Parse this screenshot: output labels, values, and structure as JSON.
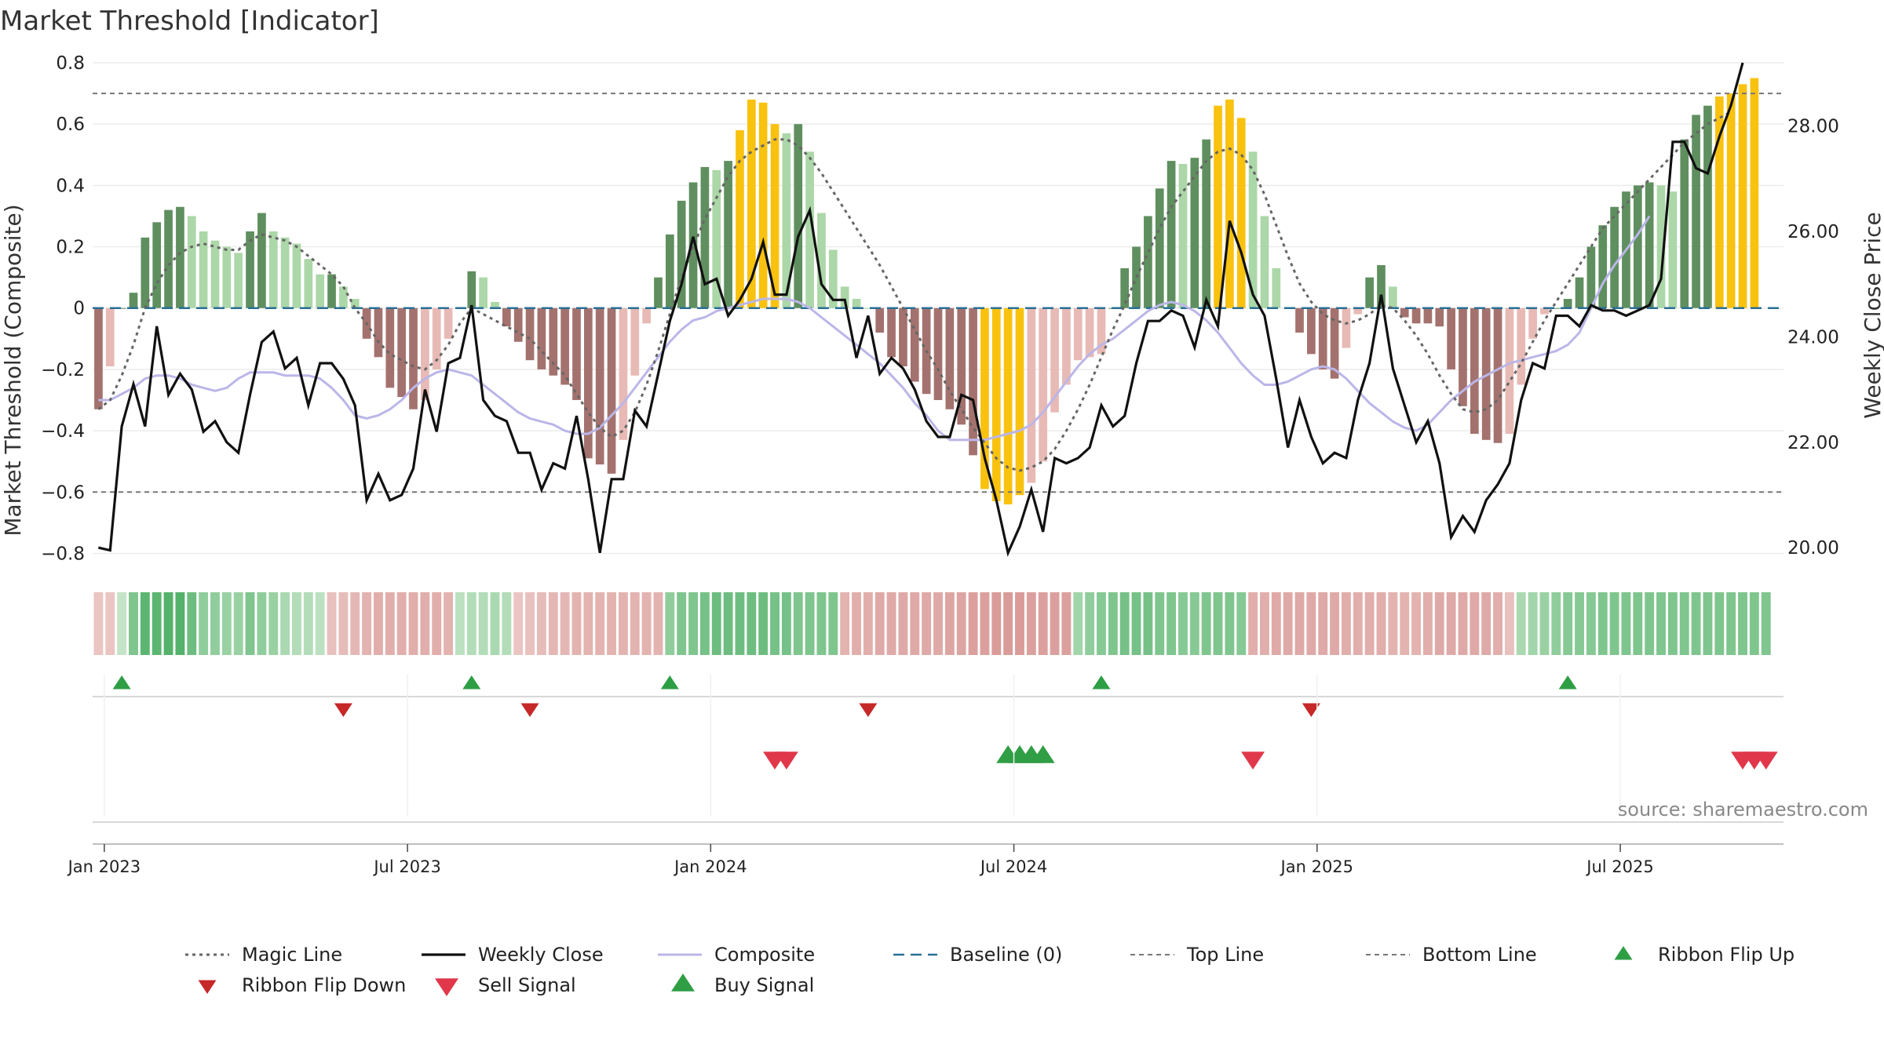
{
  "chart_data": {
    "type": "bar",
    "title": "Market Threshold [Indicator]",
    "ylabel": "Market Threshold (Composite)",
    "y2label": "Weekly Close Price",
    "ylim": [
      -0.85,
      0.8
    ],
    "y2lim": [
      19.6,
      29.2
    ],
    "yticks": [
      {
        "v": 0.8,
        "t": "0.8"
      },
      {
        "v": 0.6,
        "t": "0.6"
      },
      {
        "v": 0.4,
        "t": "0.4"
      },
      {
        "v": 0.2,
        "t": "0.2"
      },
      {
        "v": 0,
        "t": "0"
      },
      {
        "v": -0.2,
        "t": "−0.2"
      },
      {
        "v": -0.4,
        "t": "−0.4"
      },
      {
        "v": -0.6,
        "t": "−0.6"
      },
      {
        "v": -0.8,
        "t": "−0.8"
      }
    ],
    "y2ticks": [
      {
        "v": 28,
        "t": "28.00"
      },
      {
        "v": 26,
        "t": "26.00"
      },
      {
        "v": 24,
        "t": "24.00"
      },
      {
        "v": 22,
        "t": "22.00"
      },
      {
        "v": 20,
        "t": "20.00"
      }
    ],
    "xticks": [
      {
        "w": 1,
        "t": "Jan 2023"
      },
      {
        "w": 27,
        "t": "Jul 2023"
      },
      {
        "w": 53,
        "t": "Jan 2024"
      },
      {
        "w": 79,
        "t": "Jul 2024"
      },
      {
        "w": 105,
        "t": "Jan 2025"
      },
      {
        "w": 131,
        "t": "Jul 2025"
      }
    ],
    "weeks": 145,
    "composite_bars": [
      -0.33,
      -0.19,
      0.0,
      0.05,
      0.23,
      0.28,
      0.32,
      0.33,
      0.3,
      0.25,
      0.22,
      0.2,
      0.18,
      0.25,
      0.31,
      0.25,
      0.23,
      0.21,
      0.16,
      0.11,
      0.11,
      0.07,
      0.03,
      -0.1,
      -0.16,
      -0.26,
      -0.29,
      -0.33,
      -0.3,
      -0.2,
      -0.1,
      0.0,
      0.12,
      0.1,
      0.02,
      -0.06,
      -0.11,
      -0.17,
      -0.2,
      -0.22,
      -0.25,
      -0.3,
      -0.49,
      -0.51,
      -0.54,
      -0.43,
      -0.22,
      -0.05,
      0.1,
      0.24,
      0.35,
      0.41,
      0.46,
      0.45,
      0.48,
      0.58,
      0.68,
      0.67,
      0.6,
      0.57,
      0.6,
      0.51,
      0.31,
      0.19,
      0.07,
      0.03,
      0.0,
      -0.08,
      -0.16,
      -0.19,
      -0.24,
      -0.28,
      -0.3,
      -0.33,
      -0.38,
      -0.48,
      -0.59,
      -0.63,
      -0.64,
      -0.61,
      -0.57,
      -0.5,
      -0.34,
      -0.25,
      -0.17,
      -0.16,
      -0.15,
      0.0,
      0.13,
      0.2,
      0.3,
      0.39,
      0.48,
      0.47,
      0.49,
      0.55,
      0.66,
      0.68,
      0.62,
      0.51,
      0.3,
      0.13,
      0.0,
      -0.08,
      -0.15,
      -0.2,
      -0.23,
      -0.13,
      -0.02,
      0.1,
      0.14,
      0.07,
      -0.03,
      -0.05,
      -0.05,
      -0.06,
      -0.2,
      -0.32,
      -0.41,
      -0.43,
      -0.44,
      -0.41,
      -0.25,
      -0.1,
      -0.02,
      0.0,
      0.03,
      0.1,
      0.2,
      0.27,
      0.33,
      0.38,
      0.4,
      0.41,
      0.4,
      0.38,
      0.55,
      0.63,
      0.66,
      0.69,
      0.7,
      0.73,
      0.75
    ],
    "bar_colors": {
      "strong_up": "#5f8f5f",
      "light_up": "#acd7a8",
      "strong_down": "#a4726e",
      "light_down": "#e8bab5",
      "extreme": "#f9c20f"
    },
    "weekly_close": [
      20.0,
      19.95,
      22.3,
      23.1,
      22.3,
      24.2,
      22.9,
      23.3,
      23.0,
      22.2,
      22.4,
      22.0,
      21.8,
      22.9,
      23.9,
      24.1,
      23.4,
      23.6,
      22.7,
      23.5,
      23.5,
      23.2,
      22.7,
      20.9,
      21.4,
      20.9,
      21.0,
      21.5,
      23.0,
      22.2,
      23.5,
      23.6,
      24.6,
      22.8,
      22.5,
      22.4,
      21.8,
      21.8,
      21.1,
      21.6,
      21.5,
      22.5,
      21.3,
      19.9,
      21.3,
      21.3,
      22.6,
      22.3,
      23.3,
      24.3,
      25.0,
      25.9,
      25.0,
      25.1,
      24.4,
      24.7,
      25.1,
      25.8,
      24.8,
      24.8,
      25.9,
      26.4,
      25.0,
      24.7,
      24.7,
      23.6,
      24.4,
      23.3,
      23.6,
      23.4,
      23.0,
      22.4,
      22.1,
      22.1,
      22.9,
      22.8,
      21.7,
      20.9,
      19.9,
      20.4,
      21.1,
      20.3,
      21.7,
      21.6,
      21.7,
      21.9,
      22.7,
      22.3,
      22.5,
      23.5,
      24.3,
      24.3,
      24.5,
      24.4,
      23.8,
      24.7,
      24.2,
      26.2,
      25.6,
      24.8,
      24.4,
      23.2,
      21.9,
      22.8,
      22.1,
      21.6,
      21.8,
      21.7,
      22.8,
      23.5,
      24.8,
      23.4,
      22.7,
      22.0,
      22.4,
      21.6,
      20.2,
      20.6,
      20.3,
      20.9,
      21.2,
      21.6,
      22.8,
      23.5,
      23.4,
      24.4,
      24.4,
      24.2,
      24.6,
      24.5,
      24.5,
      24.4,
      24.5,
      24.6,
      25.1,
      27.7,
      27.7,
      27.2,
      27.1,
      27.8,
      28.4,
      29.2
    ],
    "magic_line": [
      -0.33,
      -0.3,
      -0.22,
      -0.12,
      0.0,
      0.08,
      0.14,
      0.18,
      0.2,
      0.21,
      0.2,
      0.19,
      0.19,
      0.22,
      0.24,
      0.23,
      0.22,
      0.2,
      0.17,
      0.14,
      0.11,
      0.07,
      0.0,
      -0.05,
      -0.11,
      -0.15,
      -0.17,
      -0.19,
      -0.2,
      -0.17,
      -0.12,
      -0.05,
      0.0,
      -0.02,
      -0.04,
      -0.06,
      -0.08,
      -0.1,
      -0.14,
      -0.18,
      -0.22,
      -0.28,
      -0.34,
      -0.39,
      -0.42,
      -0.4,
      -0.34,
      -0.25,
      -0.14,
      -0.02,
      0.1,
      0.2,
      0.29,
      0.36,
      0.43,
      0.48,
      0.51,
      0.53,
      0.55,
      0.55,
      0.53,
      0.49,
      0.44,
      0.38,
      0.32,
      0.26,
      0.2,
      0.14,
      0.07,
      0.0,
      -0.07,
      -0.14,
      -0.2,
      -0.27,
      -0.33,
      -0.39,
      -0.44,
      -0.49,
      -0.52,
      -0.53,
      -0.52,
      -0.5,
      -0.46,
      -0.4,
      -0.33,
      -0.25,
      -0.16,
      -0.07,
      0.01,
      0.1,
      0.18,
      0.26,
      0.33,
      0.38,
      0.43,
      0.48,
      0.51,
      0.52,
      0.5,
      0.45,
      0.37,
      0.27,
      0.17,
      0.08,
      0.02,
      -0.02,
      -0.04,
      -0.05,
      -0.04,
      -0.02,
      0.01,
      0.0,
      -0.04,
      -0.09,
      -0.15,
      -0.22,
      -0.28,
      -0.33,
      -0.34,
      -0.33,
      -0.3,
      -0.24,
      -0.18,
      -0.11,
      -0.04,
      0.02,
      0.08,
      0.14,
      0.2,
      0.26,
      0.3,
      0.34,
      0.38,
      0.42,
      0.46,
      0.5,
      0.54,
      0.57,
      0.6,
      0.62,
      0.64
    ],
    "composite_line": [
      -0.3,
      -0.3,
      -0.28,
      -0.26,
      -0.23,
      -0.22,
      -0.22,
      -0.23,
      -0.25,
      -0.26,
      -0.27,
      -0.26,
      -0.23,
      -0.21,
      -0.21,
      -0.21,
      -0.22,
      -0.22,
      -0.22,
      -0.23,
      -0.26,
      -0.3,
      -0.35,
      -0.36,
      -0.35,
      -0.33,
      -0.3,
      -0.26,
      -0.23,
      -0.21,
      -0.2,
      -0.21,
      -0.22,
      -0.25,
      -0.28,
      -0.31,
      -0.34,
      -0.36,
      -0.37,
      -0.38,
      -0.4,
      -0.41,
      -0.41,
      -0.39,
      -0.35,
      -0.31,
      -0.26,
      -0.21,
      -0.16,
      -0.11,
      -0.07,
      -0.04,
      -0.03,
      -0.01,
      0.0,
      0.01,
      0.02,
      0.03,
      0.03,
      0.03,
      0.02,
      0.0,
      -0.03,
      -0.06,
      -0.09,
      -0.12,
      -0.15,
      -0.18,
      -0.22,
      -0.26,
      -0.31,
      -0.35,
      -0.4,
      -0.43,
      -0.43,
      -0.43,
      -0.43,
      -0.42,
      -0.41,
      -0.4,
      -0.38,
      -0.34,
      -0.29,
      -0.24,
      -0.19,
      -0.15,
      -0.12,
      -0.1,
      -0.07,
      -0.04,
      -0.01,
      0.01,
      0.02,
      0.01,
      -0.01,
      -0.04,
      -0.08,
      -0.13,
      -0.18,
      -0.22,
      -0.25,
      -0.25,
      -0.24,
      -0.22,
      -0.2,
      -0.19,
      -0.2,
      -0.23,
      -0.27,
      -0.31,
      -0.34,
      -0.37,
      -0.39,
      -0.4,
      -0.38,
      -0.34,
      -0.3,
      -0.27,
      -0.24,
      -0.22,
      -0.2,
      -0.18,
      -0.17,
      -0.16,
      -0.15,
      -0.14,
      -0.12,
      -0.08,
      0.0,
      0.08,
      0.14,
      0.19,
      0.24,
      0.3
    ],
    "baseline": 0,
    "top_line": 0.7,
    "bottom_line": -0.6,
    "ribbon": [
      -0.3,
      -0.3,
      0.2,
      0.6,
      0.8,
      0.8,
      0.85,
      0.85,
      0.7,
      0.5,
      0.5,
      0.45,
      0.45,
      0.6,
      0.5,
      0.45,
      0.35,
      0.3,
      0.3,
      0.25,
      -0.35,
      -0.4,
      -0.45,
      -0.5,
      -0.55,
      -0.55,
      -0.55,
      -0.55,
      -0.55,
      -0.55,
      -0.5,
      0.25,
      0.3,
      0.3,
      0.35,
      0.3,
      -0.3,
      -0.35,
      -0.4,
      -0.45,
      -0.45,
      -0.5,
      -0.5,
      -0.5,
      -0.5,
      -0.5,
      -0.5,
      -0.5,
      -0.5,
      0.5,
      0.6,
      0.6,
      0.65,
      0.7,
      0.7,
      0.7,
      0.7,
      0.7,
      0.65,
      0.65,
      0.6,
      0.6,
      0.6,
      0.6,
      -0.5,
      -0.55,
      -0.55,
      -0.6,
      -0.6,
      -0.6,
      -0.6,
      -0.6,
      -0.6,
      -0.65,
      -0.65,
      -0.7,
      -0.7,
      -0.75,
      -0.75,
      -0.75,
      -0.7,
      -0.7,
      -0.7,
      -0.7,
      0.4,
      0.5,
      0.55,
      0.6,
      0.65,
      0.65,
      0.65,
      0.6,
      0.6,
      0.55,
      0.55,
      0.6,
      0.6,
      0.6,
      0.55,
      -0.55,
      -0.55,
      -0.6,
      -0.6,
      -0.6,
      -0.6,
      -0.6,
      -0.6,
      -0.55,
      -0.55,
      -0.55,
      -0.55,
      -0.5,
      -0.5,
      -0.5,
      -0.55,
      -0.6,
      -0.6,
      -0.6,
      -0.6,
      -0.6,
      -0.55,
      -0.35,
      0.35,
      0.4,
      0.45,
      0.5,
      0.55,
      0.55,
      0.55,
      0.6,
      0.6,
      0.6,
      0.6,
      0.6,
      0.6,
      0.6,
      0.6,
      0.6,
      0.6,
      0.6,
      0.6,
      0.6,
      0.6,
      0.6
    ],
    "ribbon_flip_up_weeks": [
      2,
      32,
      49,
      86,
      126
    ],
    "ribbon_flip_down_weeks": [
      21,
      37,
      66,
      104
    ],
    "sell_signal_weeks": [
      58,
      59,
      99,
      141,
      142,
      143
    ],
    "buy_signal_weeks": [
      78,
      79,
      80,
      81
    ],
    "source": "source: sharemaestro.com",
    "legend": [
      {
        "key": "magic",
        "label": "Magic Line"
      },
      {
        "key": "close",
        "label": "Weekly Close"
      },
      {
        "key": "composite",
        "label": "Composite"
      },
      {
        "key": "baseline",
        "label": "Baseline (0)"
      },
      {
        "key": "top",
        "label": "Top Line"
      },
      {
        "key": "bottom",
        "label": "Bottom Line"
      },
      {
        "key": "flipup",
        "label": "Ribbon Flip Up"
      },
      {
        "key": "flipdown",
        "label": "Ribbon Flip Down"
      },
      {
        "key": "sell",
        "label": "Sell Signal"
      },
      {
        "key": "buy",
        "label": "Buy Signal"
      }
    ],
    "colors": {
      "magic": "#666666",
      "close": "#111111",
      "composite": "#bbb6e8",
      "baseline": "#2a6f97",
      "threshold": "#777777",
      "flip_up": "#2e9e44",
      "flip_down": "#c62828",
      "sell": "#e0384a",
      "buy": "#2f9e44"
    }
  }
}
